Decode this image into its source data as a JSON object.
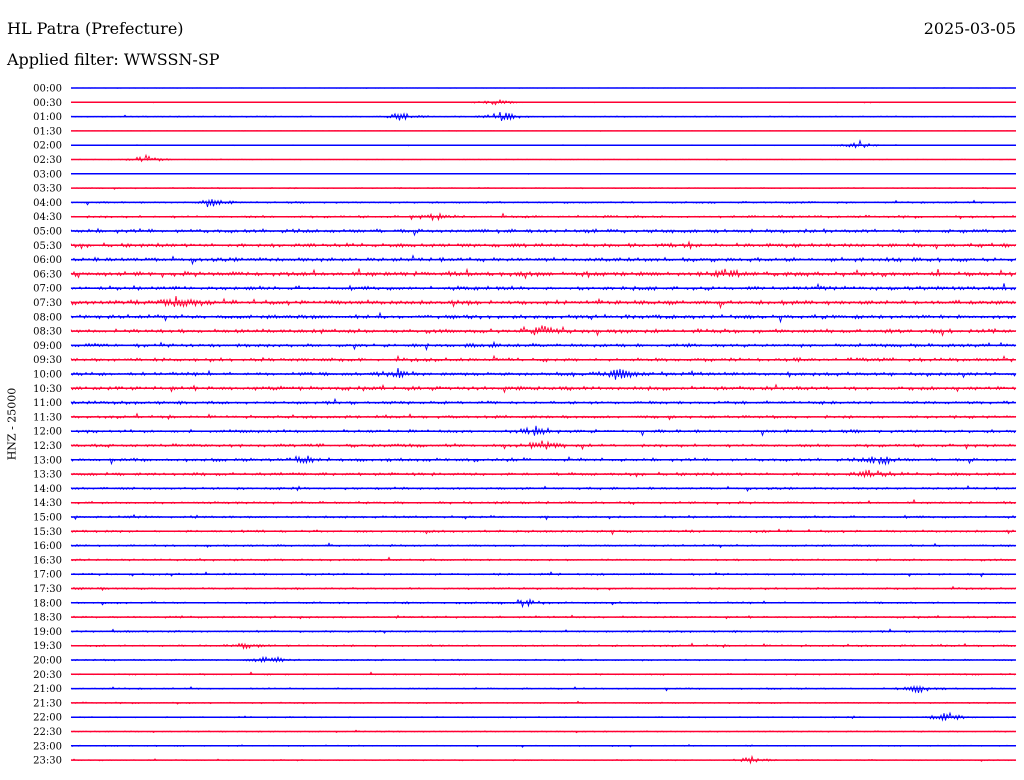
{
  "header": {
    "station": "HL Patra (Prefecture)",
    "date": "2025-03-05",
    "filter": "Applied filter: WWSSN-SP"
  },
  "chart_data": {
    "type": "line",
    "title": "HL Patra (Prefecture)",
    "ylabel": "HNZ - 25000",
    "row_interval_minutes": 30,
    "row_labels": [
      "00:00",
      "00:30",
      "01:00",
      "01:30",
      "02:00",
      "02:30",
      "03:00",
      "03:30",
      "04:00",
      "04:30",
      "05:00",
      "05:30",
      "06:00",
      "06:30",
      "07:00",
      "07:30",
      "08:00",
      "08:30",
      "09:00",
      "09:30",
      "10:00",
      "10:30",
      "11:00",
      "11:30",
      "12:00",
      "12:30",
      "13:00",
      "13:30",
      "14:00",
      "14:30",
      "15:00",
      "15:30",
      "16:00",
      "16:30",
      "17:00",
      "17:30",
      "18:00",
      "18:30",
      "19:00",
      "19:30",
      "20:00",
      "20:30",
      "21:00",
      "21:30",
      "22:00",
      "22:30",
      "23:00",
      "23:30"
    ],
    "series_colors": [
      "#0000ff",
      "#ff0033"
    ],
    "noise_level": [
      0.1,
      0.15,
      0.3,
      0.1,
      0.15,
      0.15,
      0.1,
      0.3,
      0.45,
      0.6,
      1.0,
      1.0,
      1.0,
      1.2,
      1.0,
      1.1,
      1.0,
      1.0,
      0.9,
      0.9,
      0.9,
      1.0,
      0.8,
      0.7,
      0.8,
      0.8,
      0.8,
      0.8,
      0.6,
      0.6,
      0.6,
      0.6,
      0.5,
      0.5,
      0.5,
      0.5,
      0.5,
      0.5,
      0.5,
      0.5,
      0.4,
      0.4,
      0.4,
      0.35,
      0.35,
      0.3,
      0.3,
      0.3
    ],
    "events": [
      {
        "row": 1,
        "minute": 13.5,
        "amplitude": 4
      },
      {
        "row": 2,
        "minute": 10.5,
        "amplitude": 5
      },
      {
        "row": 2,
        "minute": 13.7,
        "amplitude": 6
      },
      {
        "row": 4,
        "minute": 25.0,
        "amplitude": 5
      },
      {
        "row": 5,
        "minute": 2.4,
        "amplitude": 5
      },
      {
        "row": 8,
        "minute": 4.5,
        "amplitude": 4
      },
      {
        "row": 9,
        "minute": 11.6,
        "amplitude": 4
      },
      {
        "row": 13,
        "minute": 20.8,
        "amplitude": 4
      },
      {
        "row": 15,
        "minute": 3.4,
        "amplitude": 7
      },
      {
        "row": 17,
        "minute": 14.9,
        "amplitude": 5
      },
      {
        "row": 20,
        "minute": 10.4,
        "amplitude": 6
      },
      {
        "row": 20,
        "minute": 17.4,
        "amplitude": 6
      },
      {
        "row": 24,
        "minute": 14.8,
        "amplitude": 5
      },
      {
        "row": 25,
        "minute": 15.0,
        "amplitude": 5
      },
      {
        "row": 26,
        "minute": 7.4,
        "amplitude": 5
      },
      {
        "row": 26,
        "minute": 25.7,
        "amplitude": 6
      },
      {
        "row": 27,
        "minute": 25.5,
        "amplitude": 5
      },
      {
        "row": 36,
        "minute": 14.4,
        "amplitude": 4
      },
      {
        "row": 39,
        "minute": 5.5,
        "amplitude": 3
      },
      {
        "row": 40,
        "minute": 6.3,
        "amplitude": 4
      },
      {
        "row": 42,
        "minute": 26.9,
        "amplitude": 4
      },
      {
        "row": 44,
        "minute": 27.8,
        "amplitude": 5
      },
      {
        "row": 47,
        "minute": 21.6,
        "amplitude": 4
      }
    ]
  }
}
